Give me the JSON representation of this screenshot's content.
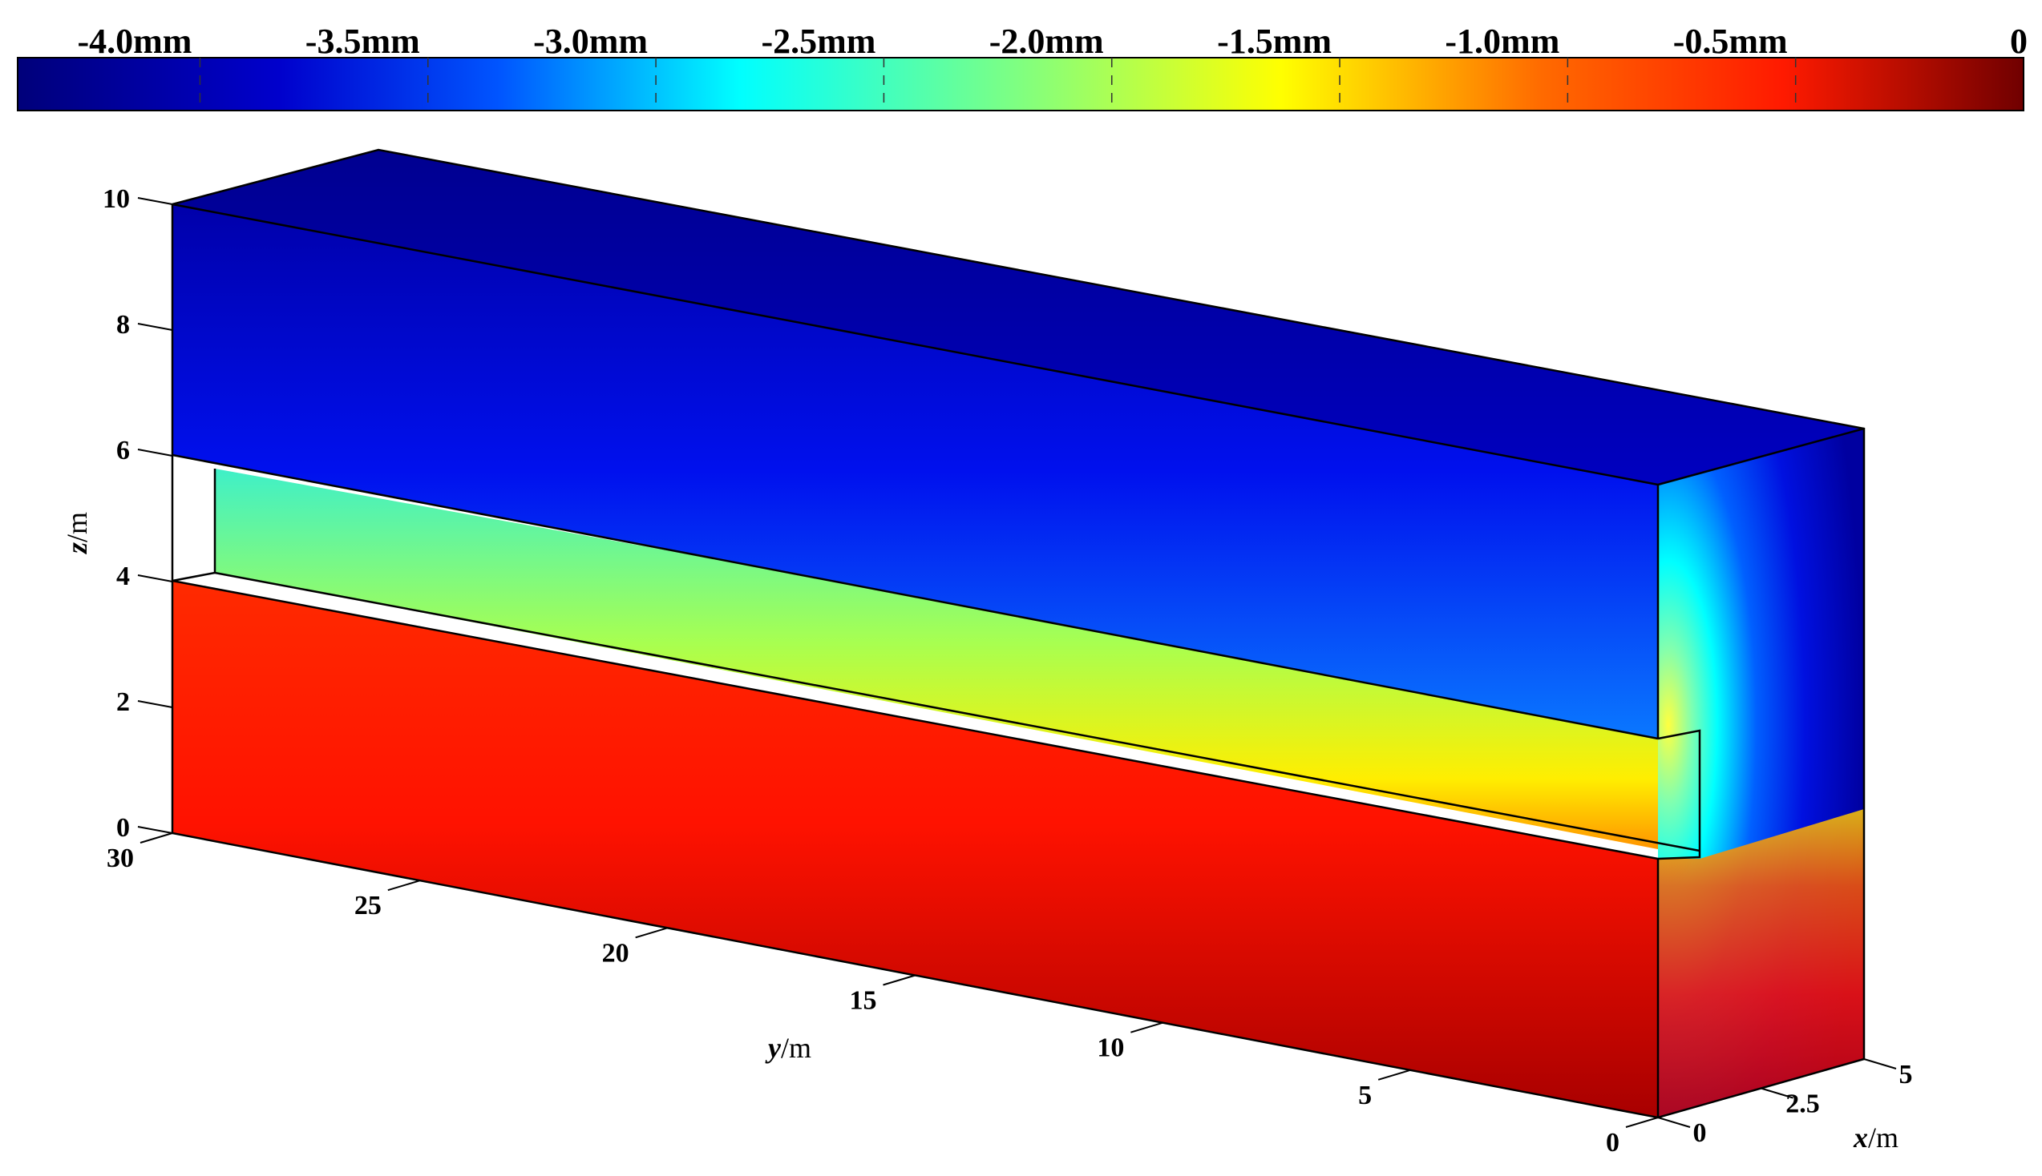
{
  "chart_data": {
    "type": "heatmap",
    "subtype": "3d-contour-block",
    "colorbar": {
      "ticks": [
        "-4.0mm",
        "-3.5mm",
        "-3.0mm",
        "-2.5mm",
        "-2.0mm",
        "-1.5mm",
        "-1.0mm",
        "-0.5mm",
        "0"
      ],
      "min": -4.4,
      "max": 0,
      "colormap": "jet",
      "placement": "top"
    },
    "axes": {
      "z": {
        "label_italic": "z",
        "label_unit": "/m",
        "ticks": [
          "0",
          "2",
          "4",
          "6",
          "8",
          "10"
        ],
        "range": [
          0,
          10
        ]
      },
      "y": {
        "label_italic": "y",
        "label_unit": "/m",
        "ticks": [
          "0",
          "5",
          "10",
          "15",
          "20",
          "25",
          "30"
        ],
        "range": [
          0,
          30
        ]
      },
      "x": {
        "label_italic": "x",
        "label_unit": "/m",
        "ticks": [
          "0",
          "2.5",
          "5"
        ],
        "range": [
          0,
          5
        ]
      }
    },
    "regions": [
      {
        "name": "lower block",
        "z_range": [
          0,
          4
        ],
        "value_mm": -0.5
      },
      {
        "name": "middle layer",
        "z_range": [
          4,
          6
        ],
        "value_mm": -2.5
      },
      {
        "name": "upper block",
        "z_range": [
          6,
          10
        ],
        "value_mm": -4.0
      }
    ]
  }
}
